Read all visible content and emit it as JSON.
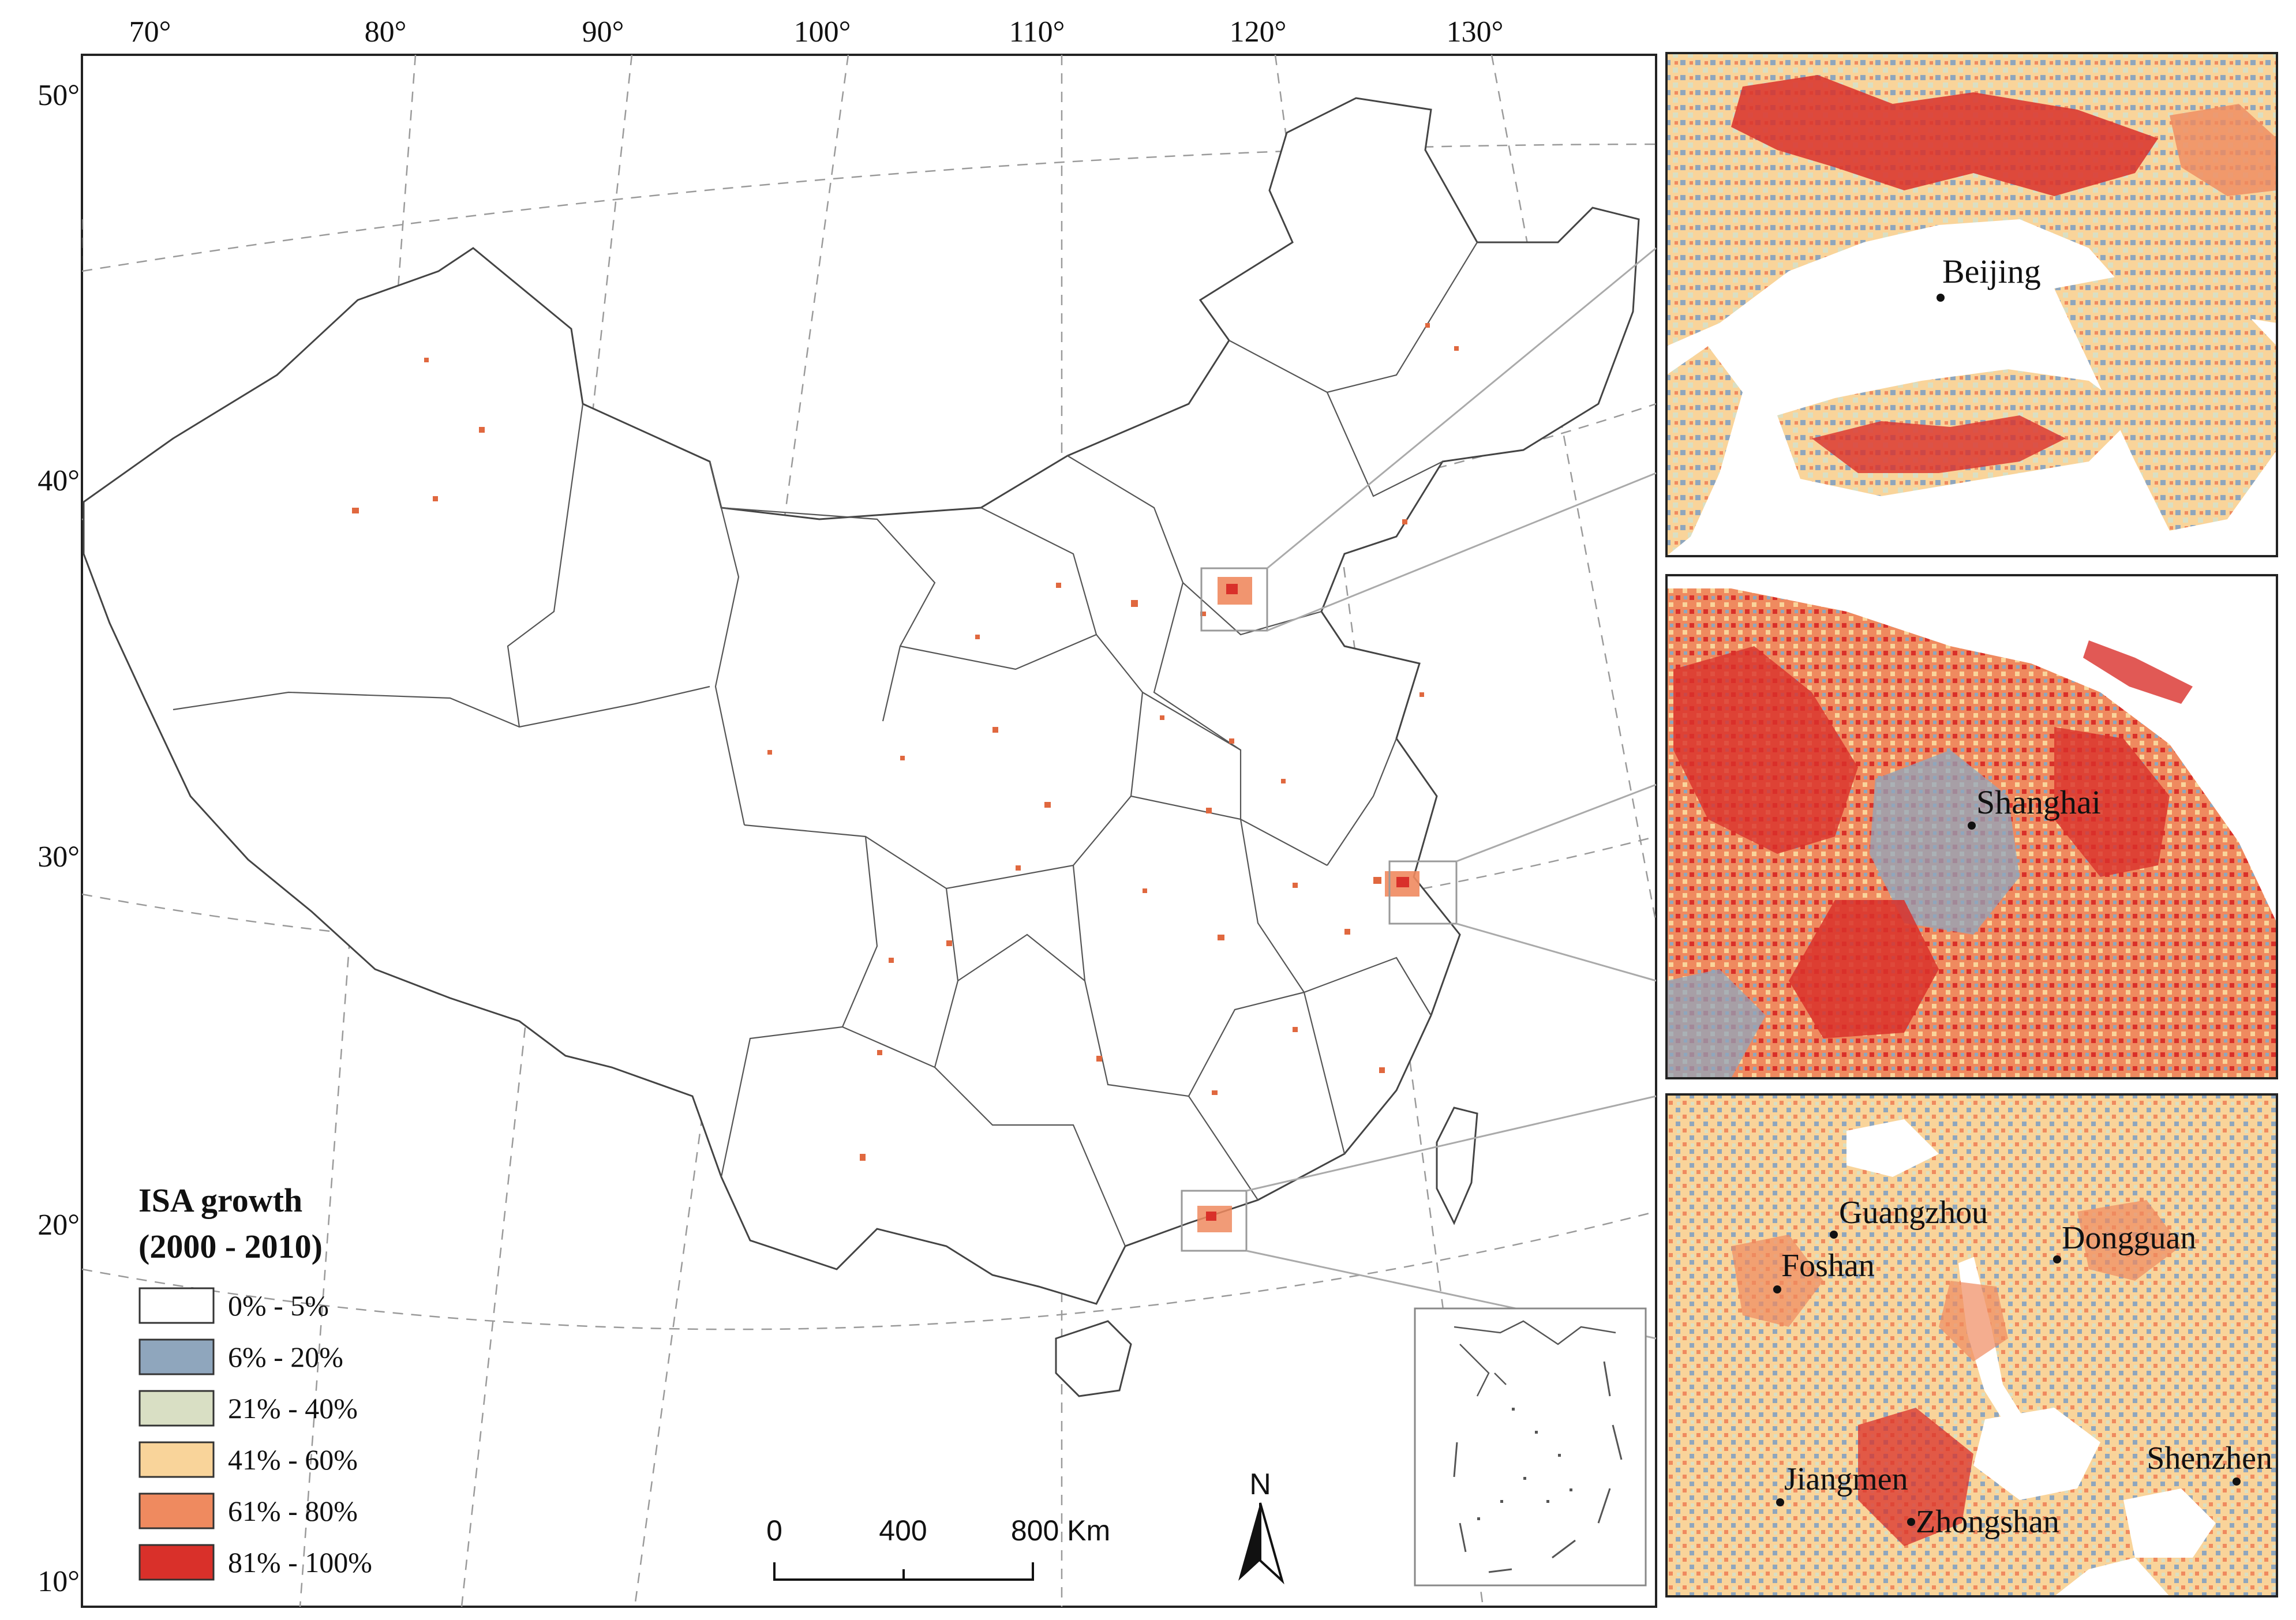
{
  "main_map": {
    "longitude_labels": [
      "70°",
      "80°",
      "90°",
      "100°",
      "110°",
      "120°",
      "130°"
    ],
    "latitude_labels": [
      "50°",
      "40°",
      "30°",
      "20°",
      "10°"
    ]
  },
  "legend": {
    "title_line1": "ISA growth",
    "title_line2": "(2000 - 2010)",
    "classes": [
      {
        "label": "0% - 5%",
        "color": "#ffffff"
      },
      {
        "label": "6% - 20%",
        "color": "#8fa6bd"
      },
      {
        "label": "21% - 40%",
        "color": "#d9dfc4"
      },
      {
        "label": "41% - 60%",
        "color": "#f9d49a"
      },
      {
        "label": "61% - 80%",
        "color": "#ef8a5f"
      },
      {
        "label": "81% - 100%",
        "color": "#d9302a"
      }
    ]
  },
  "scale_bar": {
    "ticks": [
      "0",
      "400",
      "800 Km"
    ]
  },
  "north_arrow": {
    "label": "N"
  },
  "insets": [
    {
      "name": "beijing",
      "cities": [
        {
          "label": "Beijing"
        }
      ]
    },
    {
      "name": "shanghai",
      "cities": [
        {
          "label": "Shanghai"
        }
      ]
    },
    {
      "name": "pearl-river-delta",
      "cities": [
        {
          "label": "Guangzhou"
        },
        {
          "label": "Foshan"
        },
        {
          "label": "Dongguan"
        },
        {
          "label": "Jiangmen"
        },
        {
          "label": "Zhongshan"
        },
        {
          "label": "Shenzhen"
        }
      ]
    }
  ]
}
